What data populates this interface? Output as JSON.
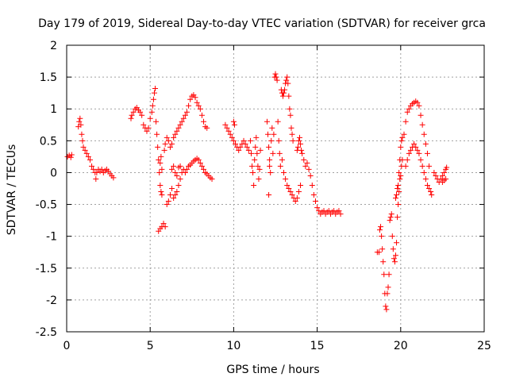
{
  "chart_data": {
    "type": "scatter",
    "title": "Day 179 of 2019, Sidereal Day-to-day VTEC variation (SDTVAR) for receiver grca",
    "xlabel": "GPS time / hours",
    "ylabel": "SDTVAR / TECUs",
    "xlim": [
      0,
      25
    ],
    "ylim": [
      -2.5,
      2
    ],
    "xticks": [
      0,
      5,
      10,
      15,
      20,
      25
    ],
    "xtick_labels": [
      "0",
      "5",
      "10",
      "15",
      "20",
      "25"
    ],
    "yticks": [
      -2.5,
      -2,
      -1.5,
      -1,
      -0.5,
      0,
      0.5,
      1,
      1.5,
      2
    ],
    "ytick_labels": [
      "-2.5",
      "-2",
      "-1.5",
      "-1",
      "-0.5",
      "0",
      "0.5",
      "1",
      "1.5",
      "2"
    ],
    "grid": true,
    "marker": "+",
    "color": "#ff0000",
    "series": [
      {
        "name": "SDTVAR",
        "points": [
          [
            0.05,
            0.25
          ],
          [
            0.15,
            0.27
          ],
          [
            0.25,
            0.24
          ],
          [
            0.3,
            0.28
          ],
          [
            0.7,
            0.72
          ],
          [
            0.75,
            0.8
          ],
          [
            0.8,
            0.85
          ],
          [
            0.85,
            0.75
          ],
          [
            0.9,
            0.6
          ],
          [
            0.95,
            0.5
          ],
          [
            1.0,
            0.4
          ],
          [
            1.1,
            0.35
          ],
          [
            1.2,
            0.3
          ],
          [
            1.3,
            0.25
          ],
          [
            1.4,
            0.2
          ],
          [
            1.5,
            0.1
          ],
          [
            1.6,
            0.05
          ],
          [
            1.7,
            0.0
          ],
          [
            1.75,
            -0.1
          ],
          [
            1.8,
            0.0
          ],
          [
            1.9,
            0.05
          ],
          [
            2.0,
            0.02
          ],
          [
            2.1,
            0.05
          ],
          [
            2.2,
            0.0
          ],
          [
            2.3,
            0.03
          ],
          [
            2.4,
            0.05
          ],
          [
            2.5,
            0.02
          ],
          [
            2.6,
            -0.02
          ],
          [
            2.7,
            -0.05
          ],
          [
            2.8,
            -0.08
          ],
          [
            3.85,
            0.85
          ],
          [
            3.9,
            0.9
          ],
          [
            4.0,
            0.95
          ],
          [
            4.1,
            1.0
          ],
          [
            4.2,
            1.02
          ],
          [
            4.3,
            0.98
          ],
          [
            4.4,
            0.95
          ],
          [
            4.5,
            0.9
          ],
          [
            4.6,
            0.75
          ],
          [
            4.7,
            0.7
          ],
          [
            4.8,
            0.65
          ],
          [
            4.9,
            0.7
          ],
          [
            5.0,
            0.85
          ],
          [
            5.1,
            0.95
          ],
          [
            5.15,
            1.05
          ],
          [
            5.2,
            1.15
          ],
          [
            5.25,
            1.25
          ],
          [
            5.3,
            1.32
          ],
          [
            5.35,
            0.8
          ],
          [
            5.4,
            0.6
          ],
          [
            5.45,
            0.4
          ],
          [
            5.5,
            0.2
          ],
          [
            5.55,
            0.0
          ],
          [
            5.6,
            0.15
          ],
          [
            5.65,
            0.25
          ],
          [
            5.7,
            0.05
          ],
          [
            5.6,
            -0.2
          ],
          [
            5.65,
            -0.3
          ],
          [
            5.7,
            -0.35
          ],
          [
            5.5,
            -0.92
          ],
          [
            5.6,
            -0.88
          ],
          [
            5.7,
            -0.85
          ],
          [
            5.8,
            -0.8
          ],
          [
            5.9,
            -0.85
          ],
          [
            5.85,
            0.35
          ],
          [
            5.9,
            0.45
          ],
          [
            6.0,
            0.55
          ],
          [
            6.1,
            0.5
          ],
          [
            6.2,
            0.4
          ],
          [
            6.3,
            0.45
          ],
          [
            6.0,
            -0.5
          ],
          [
            6.1,
            -0.45
          ],
          [
            6.2,
            -0.35
          ],
          [
            6.3,
            -0.25
          ],
          [
            6.4,
            -0.4
          ],
          [
            6.5,
            -0.35
          ],
          [
            6.6,
            -0.3
          ],
          [
            6.7,
            -0.2
          ],
          [
            6.8,
            -0.1
          ],
          [
            6.9,
            0.0
          ],
          [
            6.4,
            0.55
          ],
          [
            6.5,
            0.6
          ],
          [
            6.6,
            0.65
          ],
          [
            6.7,
            0.7
          ],
          [
            6.8,
            0.75
          ],
          [
            6.9,
            0.8
          ],
          [
            7.0,
            0.85
          ],
          [
            7.1,
            0.9
          ],
          [
            7.2,
            0.95
          ],
          [
            7.3,
            1.05
          ],
          [
            7.4,
            1.15
          ],
          [
            7.5,
            1.2
          ],
          [
            7.6,
            1.22
          ],
          [
            7.7,
            1.18
          ],
          [
            7.8,
            1.1
          ],
          [
            7.9,
            1.05
          ],
          [
            8.0,
            1.0
          ],
          [
            8.1,
            0.9
          ],
          [
            8.2,
            0.8
          ],
          [
            8.3,
            0.72
          ],
          [
            8.4,
            0.7
          ],
          [
            6.3,
            0.05
          ],
          [
            6.4,
            0.1
          ],
          [
            6.5,
            0.0
          ],
          [
            6.6,
            -0.05
          ],
          [
            6.7,
            0.08
          ],
          [
            6.8,
            0.1
          ],
          [
            7.0,
            0.05
          ],
          [
            7.1,
            0.0
          ],
          [
            7.2,
            0.05
          ],
          [
            7.3,
            0.1
          ],
          [
            7.4,
            0.12
          ],
          [
            7.5,
            0.15
          ],
          [
            7.6,
            0.18
          ],
          [
            7.7,
            0.2
          ],
          [
            7.8,
            0.22
          ],
          [
            7.9,
            0.2
          ],
          [
            8.0,
            0.15
          ],
          [
            8.1,
            0.1
          ],
          [
            8.2,
            0.05
          ],
          [
            8.3,
            0.0
          ],
          [
            8.4,
            -0.02
          ],
          [
            8.5,
            -0.05
          ],
          [
            8.6,
            -0.08
          ],
          [
            8.7,
            -0.1
          ],
          [
            9.5,
            0.75
          ],
          [
            9.6,
            0.7
          ],
          [
            9.7,
            0.65
          ],
          [
            9.8,
            0.6
          ],
          [
            9.9,
            0.55
          ],
          [
            10.0,
            0.5
          ],
          [
            10.1,
            0.45
          ],
          [
            10.2,
            0.4
          ],
          [
            10.3,
            0.35
          ],
          [
            10.4,
            0.4
          ],
          [
            10.5,
            0.45
          ],
          [
            10.6,
            0.5
          ],
          [
            10.7,
            0.45
          ],
          [
            10.8,
            0.4
          ],
          [
            10.9,
            0.35
          ],
          [
            10.0,
            0.8
          ],
          [
            10.05,
            0.75
          ],
          [
            11.0,
            0.5
          ],
          [
            11.05,
            0.3
          ],
          [
            11.1,
            0.1
          ],
          [
            11.15,
            0.0
          ],
          [
            11.2,
            -0.2
          ],
          [
            11.25,
            0.2
          ],
          [
            11.3,
            0.4
          ],
          [
            11.35,
            0.55
          ],
          [
            11.4,
            0.3
          ],
          [
            11.45,
            0.1
          ],
          [
            11.5,
            -0.1
          ],
          [
            11.55,
            0.05
          ],
          [
            11.6,
            0.35
          ],
          [
            12.0,
            0.8
          ],
          [
            12.05,
            0.6
          ],
          [
            12.1,
            0.4
          ],
          [
            12.15,
            0.2
          ],
          [
            12.2,
            0.0
          ],
          [
            12.25,
            0.5
          ],
          [
            12.3,
            0.7
          ],
          [
            12.35,
            0.3
          ],
          [
            12.4,
            0.6
          ],
          [
            12.45,
            1.5
          ],
          [
            12.5,
            1.55
          ],
          [
            12.55,
            1.5
          ],
          [
            12.6,
            1.45
          ],
          [
            12.65,
            0.8
          ],
          [
            12.7,
            0.5
          ],
          [
            12.75,
            0.3
          ],
          [
            12.8,
            0.1
          ],
          [
            12.85,
            1.3
          ],
          [
            12.9,
            1.25
          ],
          [
            12.95,
            1.2
          ],
          [
            13.0,
            1.25
          ],
          [
            13.05,
            1.3
          ],
          [
            13.1,
            1.4
          ],
          [
            13.15,
            1.45
          ],
          [
            13.2,
            1.5
          ],
          [
            13.25,
            1.4
          ],
          [
            13.3,
            1.2
          ],
          [
            13.35,
            1.0
          ],
          [
            13.4,
            0.9
          ],
          [
            13.45,
            0.7
          ],
          [
            13.5,
            0.6
          ],
          [
            13.55,
            0.5
          ],
          [
            12.1,
            -0.35
          ],
          [
            12.15,
            0.1
          ],
          [
            12.9,
            0.2
          ],
          [
            13.0,
            0.0
          ],
          [
            13.1,
            -0.1
          ],
          [
            13.2,
            -0.2
          ],
          [
            13.3,
            -0.25
          ],
          [
            13.4,
            -0.3
          ],
          [
            13.5,
            -0.35
          ],
          [
            13.6,
            -0.4
          ],
          [
            13.7,
            -0.45
          ],
          [
            13.8,
            -0.4
          ],
          [
            13.9,
            -0.3
          ],
          [
            14.0,
            -0.2
          ],
          [
            13.8,
            0.35
          ],
          [
            13.85,
            0.4
          ],
          [
            13.9,
            0.5
          ],
          [
            13.95,
            0.55
          ],
          [
            14.0,
            0.45
          ],
          [
            14.05,
            0.35
          ],
          [
            14.1,
            0.3
          ],
          [
            14.2,
            0.2
          ],
          [
            14.3,
            0.1
          ],
          [
            14.4,
            0.15
          ],
          [
            14.5,
            0.05
          ],
          [
            14.6,
            -0.05
          ],
          [
            14.7,
            -0.2
          ],
          [
            14.8,
            -0.35
          ],
          [
            14.9,
            -0.45
          ],
          [
            15.0,
            -0.55
          ],
          [
            15.1,
            -0.6
          ],
          [
            15.2,
            -0.65
          ],
          [
            15.3,
            -0.62
          ],
          [
            15.4,
            -0.6
          ],
          [
            15.5,
            -0.65
          ],
          [
            15.6,
            -0.62
          ],
          [
            15.7,
            -0.6
          ],
          [
            15.8,
            -0.65
          ],
          [
            15.9,
            -0.62
          ],
          [
            16.0,
            -0.6
          ],
          [
            16.1,
            -0.65
          ],
          [
            16.2,
            -0.62
          ],
          [
            16.3,
            -0.6
          ],
          [
            16.4,
            -0.65
          ],
          [
            18.6,
            -1.25
          ],
          [
            18.7,
            -1.25
          ],
          [
            18.75,
            -0.9
          ],
          [
            18.8,
            -0.85
          ],
          [
            18.85,
            -1.0
          ],
          [
            18.9,
            -1.2
          ],
          [
            18.95,
            -1.4
          ],
          [
            19.0,
            -1.6
          ],
          [
            19.05,
            -1.9
          ],
          [
            19.1,
            -2.1
          ],
          [
            19.15,
            -2.15
          ],
          [
            19.2,
            -1.9
          ],
          [
            19.25,
            -1.8
          ],
          [
            19.3,
            -1.6
          ],
          [
            19.35,
            -0.75
          ],
          [
            19.4,
            -0.7
          ],
          [
            19.45,
            -0.65
          ],
          [
            19.5,
            -1.0
          ],
          [
            19.55,
            -1.2
          ],
          [
            19.6,
            -1.35
          ],
          [
            19.65,
            -1.4
          ],
          [
            19.7,
            -1.3
          ],
          [
            19.75,
            -1.1
          ],
          [
            19.8,
            -0.7
          ],
          [
            19.85,
            -0.5
          ],
          [
            19.9,
            -0.3
          ],
          [
            19.95,
            -0.1
          ],
          [
            20.0,
            -0.05
          ],
          [
            20.05,
            0.1
          ],
          [
            20.1,
            0.2
          ],
          [
            19.7,
            -0.4
          ],
          [
            19.75,
            -0.35
          ],
          [
            19.8,
            -0.25
          ],
          [
            19.85,
            -0.2
          ],
          [
            19.9,
            0.0
          ],
          [
            19.95,
            0.2
          ],
          [
            20.0,
            0.4
          ],
          [
            20.05,
            0.5
          ],
          [
            20.1,
            0.55
          ],
          [
            20.2,
            0.6
          ],
          [
            20.3,
            0.8
          ],
          [
            20.4,
            0.95
          ],
          [
            20.5,
            1.0
          ],
          [
            20.6,
            1.05
          ],
          [
            20.7,
            1.08
          ],
          [
            20.8,
            1.1
          ],
          [
            20.9,
            1.12
          ],
          [
            21.0,
            1.1
          ],
          [
            21.1,
            1.05
          ],
          [
            21.2,
            0.9
          ],
          [
            21.3,
            0.75
          ],
          [
            21.4,
            0.6
          ],
          [
            21.5,
            0.45
          ],
          [
            21.6,
            0.3
          ],
          [
            21.7,
            0.1
          ],
          [
            20.3,
            0.1
          ],
          [
            20.4,
            0.2
          ],
          [
            20.5,
            0.3
          ],
          [
            20.6,
            0.35
          ],
          [
            20.7,
            0.4
          ],
          [
            20.8,
            0.45
          ],
          [
            20.9,
            0.4
          ],
          [
            21.0,
            0.35
          ],
          [
            21.1,
            0.3
          ],
          [
            21.2,
            0.2
          ],
          [
            21.3,
            0.1
          ],
          [
            21.4,
            0.0
          ],
          [
            21.5,
            -0.1
          ],
          [
            21.6,
            -0.2
          ],
          [
            21.7,
            -0.25
          ],
          [
            21.8,
            -0.3
          ],
          [
            21.85,
            -0.35
          ],
          [
            22.0,
            0.0
          ],
          [
            22.1,
            -0.05
          ],
          [
            22.2,
            -0.1
          ],
          [
            22.3,
            -0.15
          ],
          [
            22.4,
            -0.1
          ],
          [
            22.5,
            -0.05
          ],
          [
            22.6,
            0.0
          ],
          [
            22.7,
            0.05
          ],
          [
            22.75,
            0.08
          ],
          [
            22.5,
            -0.15
          ],
          [
            22.6,
            -0.12
          ],
          [
            22.7,
            -0.1
          ]
        ]
      }
    ]
  }
}
